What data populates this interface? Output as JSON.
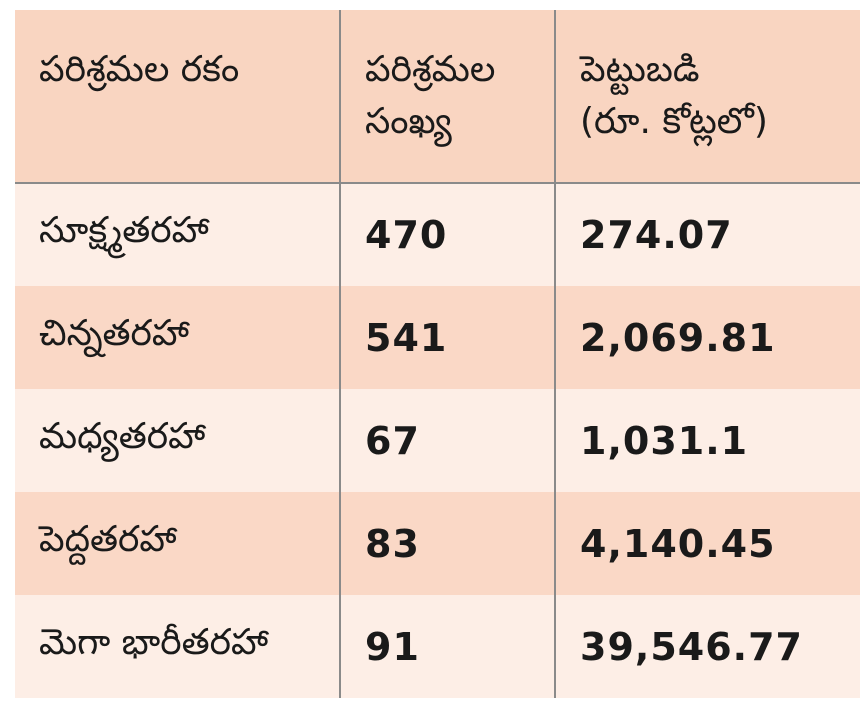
{
  "table": {
    "headers": [
      {
        "line1": "పరిశ్రమల రకం",
        "line2": ""
      },
      {
        "line1": "పరిశ్రమల",
        "line2": "సంఖ్య"
      },
      {
        "line1": "పెట్టుబడి",
        "line2": "(రూ. కోట్లలో)"
      }
    ],
    "rows": [
      {
        "type": "సూక్ష్మతరహా",
        "count": "470",
        "investment": "274.07"
      },
      {
        "type": "చిన్నతరహా",
        "count": "541",
        "investment": "2,069.81"
      },
      {
        "type": "మధ్యతరహా",
        "count": "67",
        "investment": "1,031.1"
      },
      {
        "type": "పెద్దతరహా",
        "count": "83",
        "investment": "4,140.45"
      },
      {
        "type": "మెగా భారీతరహా",
        "count": "91",
        "investment": "39,546.77"
      }
    ]
  },
  "colors": {
    "header_bg": "#f9d5c1",
    "row_light": "#fdeee6",
    "row_dark": "#fad8c6",
    "divider": "#8a8a8a"
  }
}
